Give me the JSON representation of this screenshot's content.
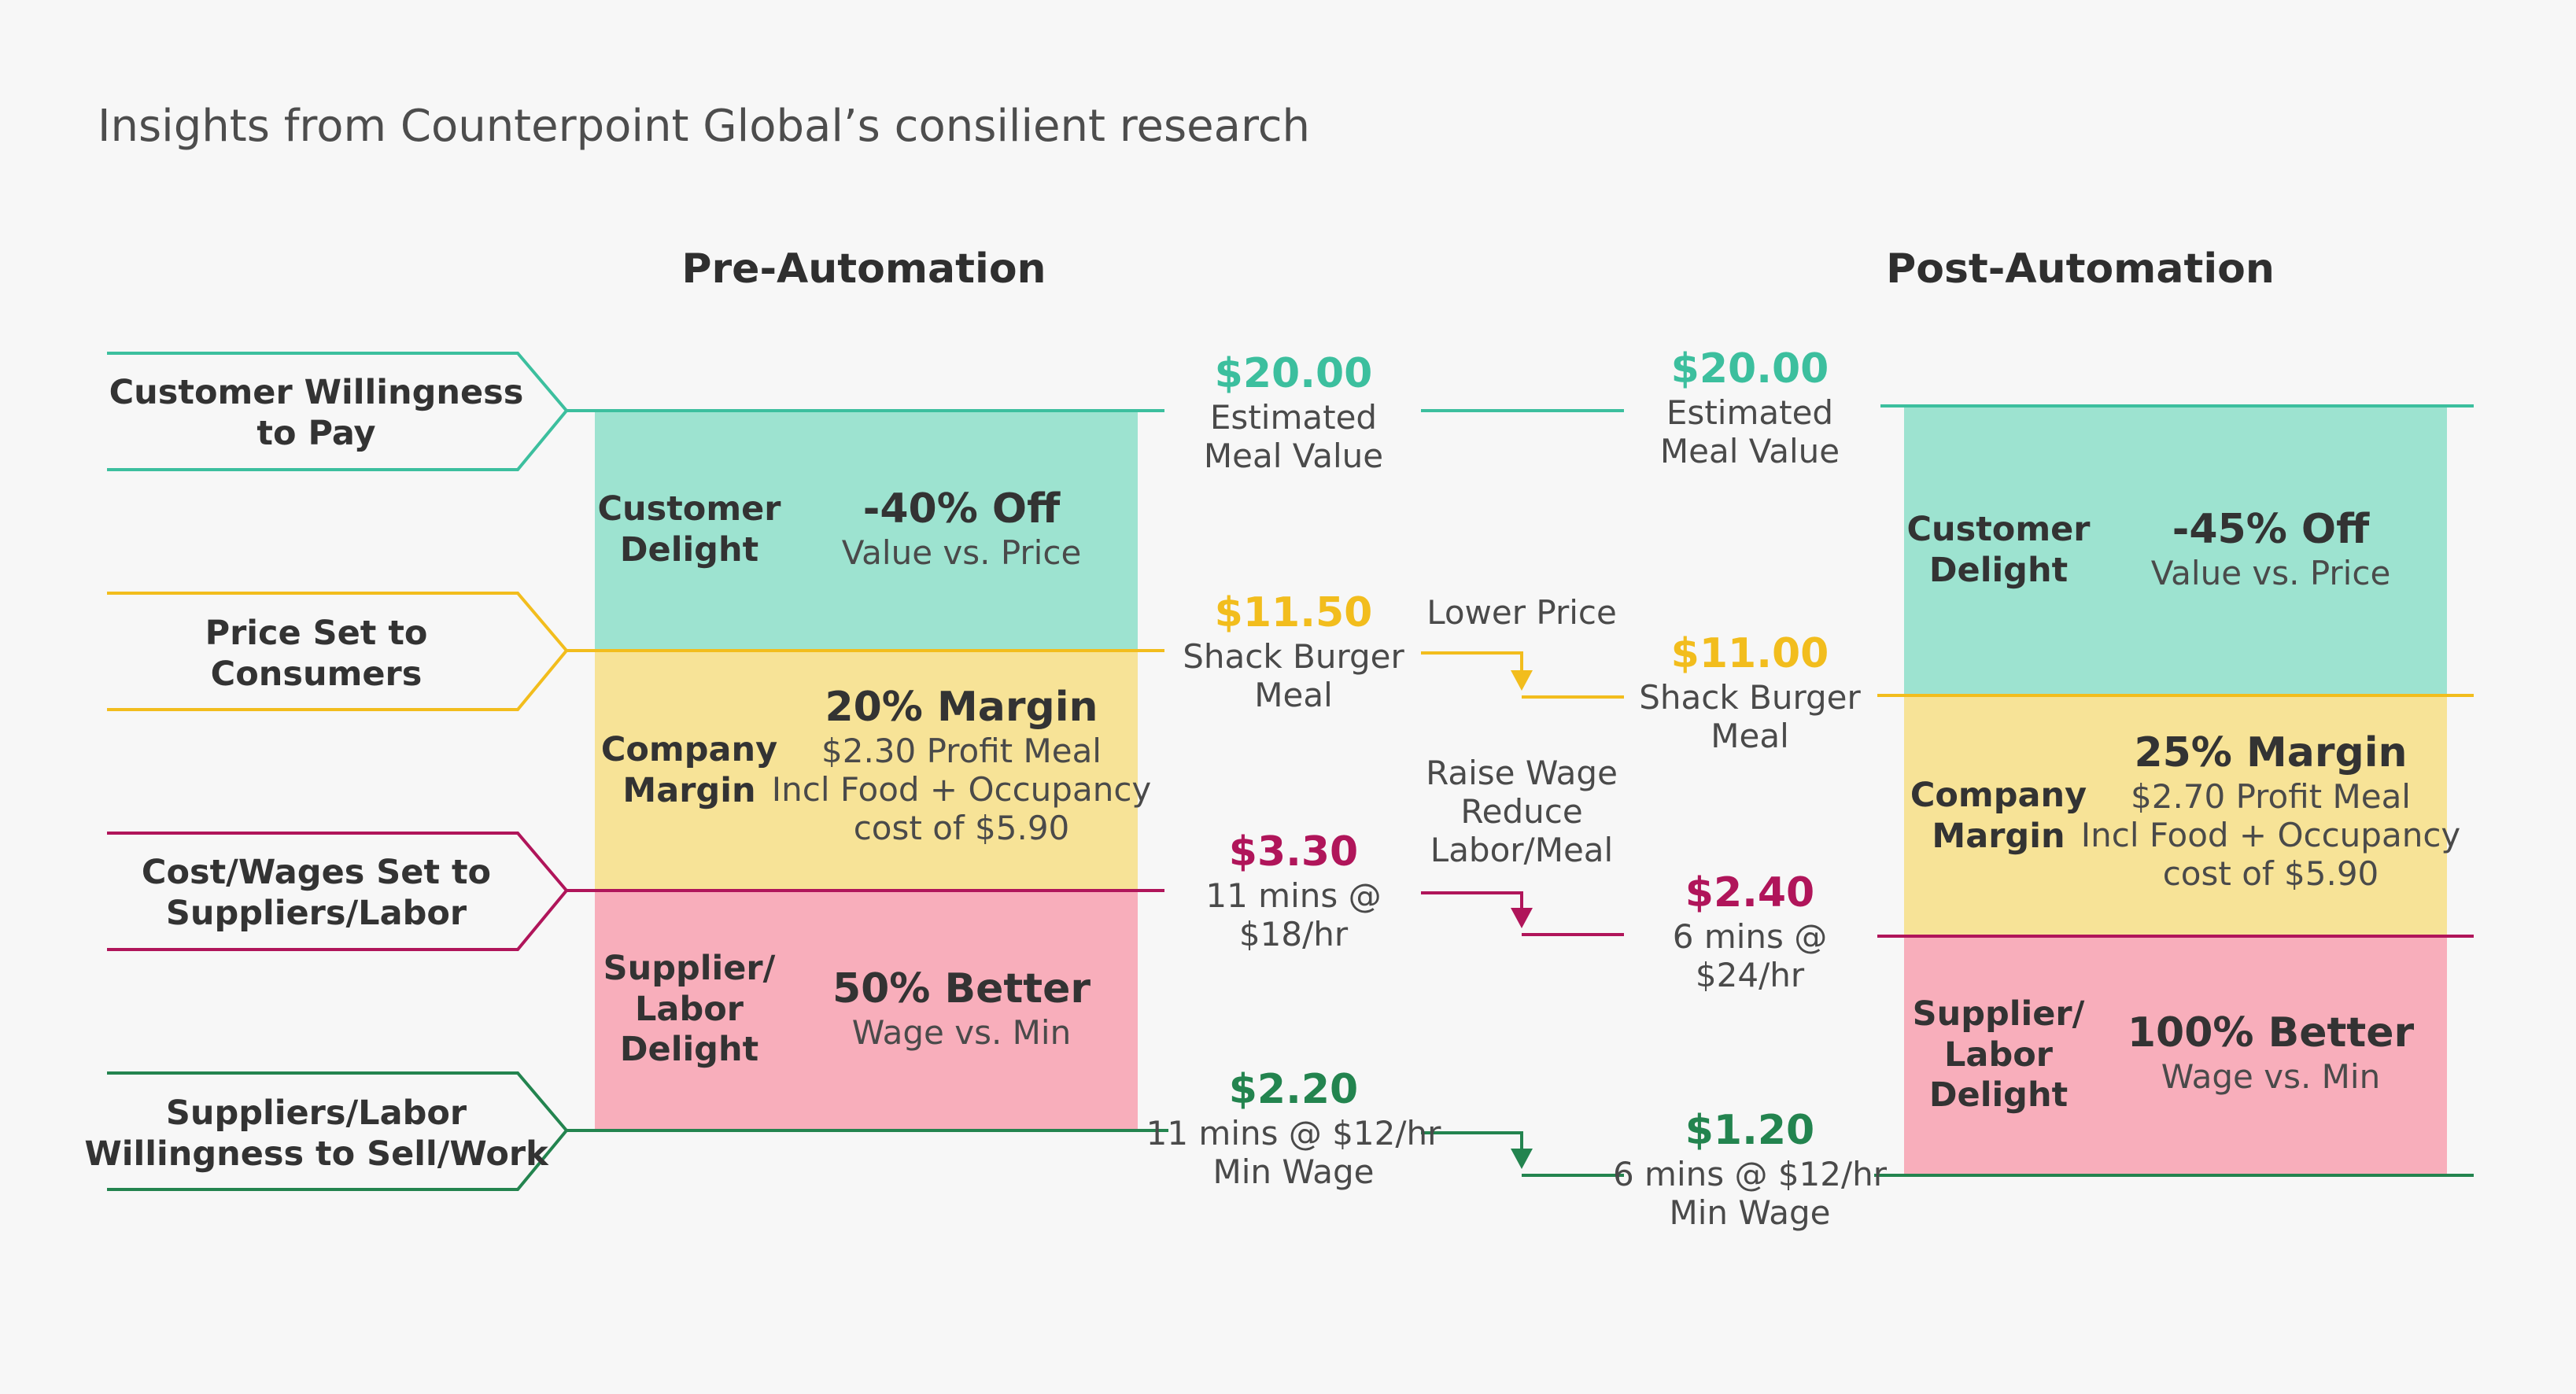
{
  "subtitle": "Insights from Counterpoint Global’s consilient research",
  "pre_title": "Pre-Automation",
  "post_title": "Post-Automation",
  "colors": {
    "teal": "#3cbf9e",
    "teal_fill": "#9de3d0",
    "yellow": "#f2bd1d",
    "yellow_fill": "#f7e397",
    "red": "#b0155a",
    "pink_fill": "#f8aebb",
    "dark_green": "#23844f"
  },
  "left_labels": [
    {
      "line1": "Customer Willingness",
      "line2": "to Pay"
    },
    {
      "line1": "Price Set to",
      "line2": "Consumers"
    },
    {
      "line1": "Cost/Wages Set to",
      "line2": "Suppliers/Labor"
    },
    {
      "line1": "Suppliers/Labor",
      "line2": "Willingness to Sell/Work"
    }
  ],
  "pre": {
    "customer_delight": {
      "label1": "Customer",
      "label2": "Delight",
      "headline": "-40% Off",
      "detail": "Value vs. Price"
    },
    "company_margin": {
      "label1": "Company",
      "label2": "Margin",
      "headline": "20% Margin",
      "detail1": "$2.30 Profit Meal",
      "detail2": "Incl Food + Occupancy",
      "detail3": "cost of $5.90"
    },
    "supplier_delight": {
      "label1": "Supplier/",
      "label2": "Labor",
      "label3": "Delight",
      "headline": "50% Better",
      "detail": "Wage vs. Min"
    }
  },
  "post": {
    "customer_delight": {
      "label1": "Customer",
      "label2": "Delight",
      "headline": "-45% Off",
      "detail": "Value vs. Price"
    },
    "company_margin": {
      "label1": "Company",
      "label2": "Margin",
      "headline": "25% Margin",
      "detail1": "$2.70 Profit Meal",
      "detail2": "Incl Food + Occupancy",
      "detail3": "cost of $5.90"
    },
    "supplier_delight": {
      "label1": "Supplier/",
      "label2": "Labor",
      "label3": "Delight",
      "headline": "100% Better",
      "detail": "Wage vs. Min"
    }
  },
  "pre_values": {
    "meal_value": {
      "price": "$20.00",
      "line1": "Estimated",
      "line2": "Meal Value"
    },
    "meal_price": {
      "price": "$11.50",
      "line1": "Shack Burger",
      "line2": "Meal"
    },
    "labor_cost": {
      "price": "$3.30",
      "line1": "11 mins @",
      "line2": "$18/hr"
    },
    "min_wage": {
      "price": "$2.20",
      "line1": "11 mins @ $12/hr",
      "line2": "Min Wage"
    }
  },
  "post_values": {
    "meal_value": {
      "price": "$20.00",
      "line1": "Estimated",
      "line2": "Meal Value"
    },
    "meal_price": {
      "price": "$11.00",
      "line1": "Shack Burger",
      "line2": "Meal"
    },
    "labor_cost": {
      "price": "$2.40",
      "line1": "6 mins @",
      "line2": "$24/hr"
    },
    "min_wage": {
      "price": "$1.20",
      "line1": "6 mins @ $12/hr",
      "line2": "Min Wage"
    }
  },
  "changes": {
    "lower_price": "Lower Price",
    "raise_wage1": "Raise Wage",
    "raise_wage2": "Reduce",
    "raise_wage3": "Labor/Meal"
  }
}
